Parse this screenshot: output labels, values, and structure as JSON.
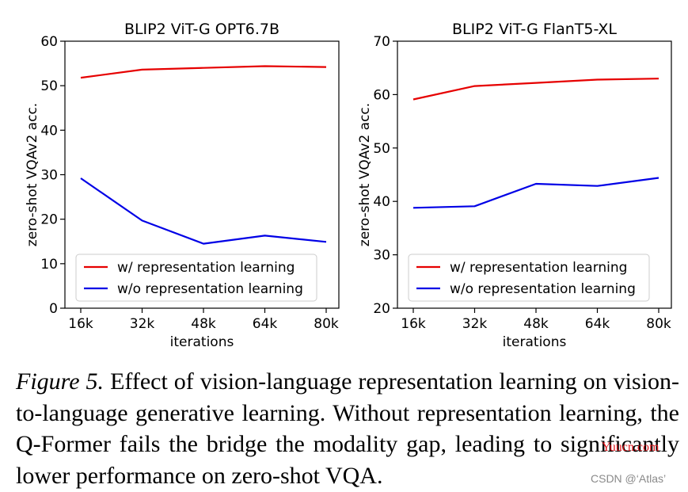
{
  "chart_data": [
    {
      "type": "line",
      "title": "BLIP2 ViT-G OPT6.7B",
      "xlabel": "iterations",
      "ylabel": "zero-shot VQAv2 acc.",
      "categories": [
        "16k",
        "32k",
        "48k",
        "64k",
        "80k"
      ],
      "ylim": [
        0,
        60
      ],
      "yticks": [
        0,
        10,
        20,
        30,
        40,
        50,
        60
      ],
      "legend_position": "lower-left",
      "grid": false,
      "series": [
        {
          "name": "w/ representation learning",
          "color": "#e60000",
          "values": [
            51.8,
            53.6,
            54.0,
            54.4,
            54.2
          ]
        },
        {
          "name": "w/o representation learning",
          "color": "#0000e6",
          "values": [
            29.2,
            19.7,
            14.5,
            16.3,
            14.9
          ]
        }
      ]
    },
    {
      "type": "line",
      "title": "BLIP2 ViT-G FlanT5-XL",
      "xlabel": "iterations",
      "ylabel": "zero-shot VQAv2 acc.",
      "categories": [
        "16k",
        "32k",
        "48k",
        "64k",
        "80k"
      ],
      "ylim": [
        20,
        70
      ],
      "yticks": [
        20,
        30,
        40,
        50,
        60,
        70
      ],
      "legend_position": "lower-left",
      "grid": false,
      "series": [
        {
          "name": "w/ representation learning",
          "color": "#e60000",
          "values": [
            59.1,
            61.6,
            62.2,
            62.8,
            63.0
          ]
        },
        {
          "name": "w/o representation learning",
          "color": "#0000e6",
          "values": [
            38.8,
            39.1,
            43.3,
            42.9,
            44.4
          ]
        }
      ]
    }
  ],
  "caption": {
    "lead": "Figure 5.",
    "text": "Effect of vision-language representation learning on vision-to-language generative learning. Without representation learning, the Q-Former fails the bridge the modality gap, leading to significantly lower performance on zero-shot VQA."
  },
  "watermarks": {
    "site": "Yuucn.com",
    "csdn": "CSDN @‘Atlas’"
  }
}
